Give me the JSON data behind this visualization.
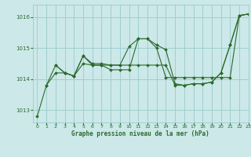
{
  "title": "Graphe pression niveau de la mer (hPa)",
  "bg_color": "#cce8e8",
  "grid_color": "#99cccc",
  "line_color": "#2d6a2d",
  "xlim": [
    -0.5,
    23
  ],
  "ylim": [
    1012.6,
    1016.4
  ],
  "yticks": [
    1013,
    1014,
    1015,
    1016
  ],
  "xticks": [
    0,
    1,
    2,
    3,
    4,
    5,
    6,
    7,
    8,
    9,
    10,
    11,
    12,
    13,
    14,
    15,
    16,
    17,
    18,
    19,
    20,
    21,
    22,
    23
  ],
  "series1": [
    [
      0,
      1012.8
    ],
    [
      1,
      1013.8
    ],
    [
      2,
      1014.45
    ],
    [
      3,
      1014.2
    ],
    [
      4,
      1014.1
    ],
    [
      5,
      1014.75
    ],
    [
      6,
      1014.5
    ],
    [
      7,
      1014.5
    ],
    [
      8,
      1014.45
    ],
    [
      9,
      1014.45
    ],
    [
      10,
      1015.05
    ],
    [
      11,
      1015.3
    ],
    [
      12,
      1015.3
    ],
    [
      13,
      1015.1
    ],
    [
      14,
      1014.95
    ],
    [
      15,
      1013.85
    ],
    [
      16,
      1013.8
    ],
    [
      17,
      1013.85
    ],
    [
      18,
      1013.85
    ],
    [
      19,
      1013.9
    ],
    [
      20,
      1014.2
    ],
    [
      21,
      1015.1
    ],
    [
      22,
      1016.05
    ],
    [
      23,
      1016.1
    ]
  ],
  "series2": [
    [
      1,
      1013.8
    ],
    [
      2,
      1014.2
    ],
    [
      3,
      1014.2
    ],
    [
      4,
      1014.1
    ],
    [
      5,
      1014.5
    ],
    [
      6,
      1014.45
    ],
    [
      7,
      1014.45
    ],
    [
      8,
      1014.3
    ],
    [
      9,
      1014.3
    ],
    [
      10,
      1014.3
    ],
    [
      11,
      1015.3
    ],
    [
      12,
      1015.3
    ],
    [
      13,
      1015.0
    ],
    [
      14,
      1014.05
    ],
    [
      15,
      1014.05
    ],
    [
      16,
      1014.05
    ],
    [
      17,
      1014.05
    ],
    [
      18,
      1014.05
    ],
    [
      19,
      1014.05
    ],
    [
      20,
      1014.05
    ],
    [
      21,
      1014.05
    ],
    [
      22,
      1016.05
    ],
    [
      23,
      1016.1
    ]
  ],
  "series3": [
    [
      2,
      1014.45
    ],
    [
      3,
      1014.2
    ],
    [
      4,
      1014.1
    ],
    [
      5,
      1014.75
    ],
    [
      6,
      1014.45
    ],
    [
      7,
      1014.45
    ],
    [
      8,
      1014.45
    ],
    [
      9,
      1014.45
    ],
    [
      10,
      1014.45
    ],
    [
      11,
      1014.45
    ],
    [
      12,
      1014.45
    ],
    [
      13,
      1014.45
    ],
    [
      14,
      1014.45
    ],
    [
      15,
      1013.8
    ],
    [
      16,
      1013.8
    ],
    [
      17,
      1013.85
    ],
    [
      18,
      1013.85
    ],
    [
      19,
      1013.9
    ],
    [
      20,
      1014.2
    ],
    [
      21,
      1015.1
    ],
    [
      22,
      1016.05
    ],
    [
      23,
      1016.1
    ]
  ]
}
